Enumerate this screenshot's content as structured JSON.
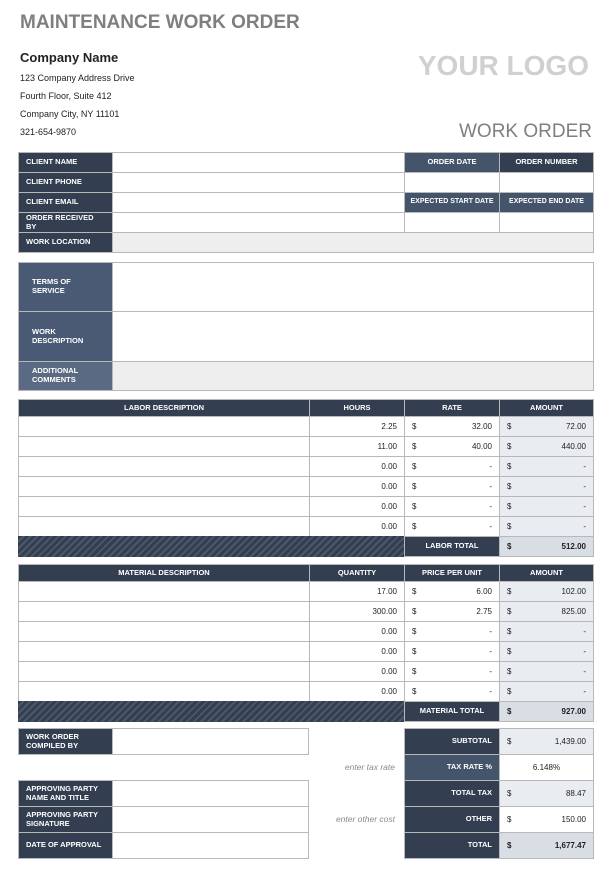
{
  "header": {
    "title": "MAINTENANCE WORK ORDER",
    "company_name": "Company Name",
    "address": [
      "123 Company Address Drive",
      "Fourth Floor, Suite 412",
      "Company City, NY  11101",
      "321-654-9870"
    ],
    "logo": "YOUR LOGO",
    "doc_title": "WORK ORDER"
  },
  "client": {
    "labels": [
      "CLIENT NAME",
      "CLIENT PHONE",
      "CLIENT EMAIL",
      "ORDER RECEIVED BY",
      "WORK LOCATION"
    ],
    "order_date": "ORDER DATE",
    "order_number": "ORDER NUMBER",
    "start_date": "EXPECTED START DATE",
    "end_date": "EXPECTED END DATE"
  },
  "terms": {
    "labels": [
      "TERMS OF SERVICE",
      "WORK DESCRIPTION",
      "ADDITIONAL COMMENTS"
    ]
  },
  "currency": "$",
  "labor": {
    "headers": [
      "LABOR DESCRIPTION",
      "HOURS",
      "RATE",
      "AMOUNT"
    ],
    "rows": [
      {
        "qty": "2.25",
        "rate": "32.00",
        "amount": "72.00"
      },
      {
        "qty": "11.00",
        "rate": "40.00",
        "amount": "440.00"
      },
      {
        "qty": "0.00",
        "rate": "-",
        "amount": "-"
      },
      {
        "qty": "0.00",
        "rate": "-",
        "amount": "-"
      },
      {
        "qty": "0.00",
        "rate": "-",
        "amount": "-"
      },
      {
        "qty": "0.00",
        "rate": "-",
        "amount": "-"
      }
    ],
    "total_label": "LABOR TOTAL",
    "total": "512.00"
  },
  "material": {
    "headers": [
      "MATERIAL DESCRIPTION",
      "QUANTITY",
      "PRICE PER UNIT",
      "AMOUNT"
    ],
    "rows": [
      {
        "qty": "17.00",
        "rate": "6.00",
        "amount": "102.00"
      },
      {
        "qty": "300.00",
        "rate": "2.75",
        "amount": "825.00"
      },
      {
        "qty": "0.00",
        "rate": "-",
        "amount": "-"
      },
      {
        "qty": "0.00",
        "rate": "-",
        "amount": "-"
      },
      {
        "qty": "0.00",
        "rate": "-",
        "amount": "-"
      },
      {
        "qty": "0.00",
        "rate": "-",
        "amount": "-"
      }
    ],
    "total_label": "MATERIAL TOTAL",
    "total": "927.00"
  },
  "approval": {
    "labels": [
      "WORK ORDER COMPILED BY",
      "APPROVING PARTY NAME AND TITLE",
      "APPROVING PARTY SIGNATURE",
      "DATE OF APPROVAL"
    ],
    "hints": [
      "enter tax rate",
      "enter other cost"
    ]
  },
  "summary": [
    {
      "label": "SUBTOTAL",
      "value": "1,439.00"
    },
    {
      "label": "TAX RATE %",
      "value": "6.148%"
    },
    {
      "label": "TOTAL TAX",
      "value": "88.47"
    },
    {
      "label": "OTHER",
      "value": "150.00"
    },
    {
      "label": "TOTAL",
      "value": "1,677.47"
    }
  ]
}
